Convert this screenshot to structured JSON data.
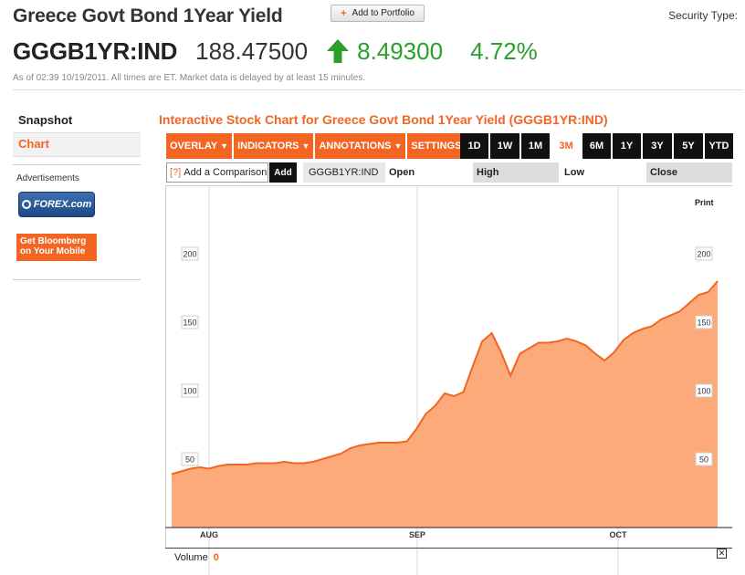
{
  "header": {
    "title": "Greece Govt Bond 1Year Yield",
    "add_portfolio": "Add to Portfolio",
    "security_type": "Security Type:"
  },
  "quote": {
    "ticker": "GGGB1YR:IND",
    "price": "188.47500",
    "change": "8.49300",
    "change_pct": "4.72%",
    "direction": "up",
    "up_color": "#2aa02a"
  },
  "asof": "As of 02:39 10/19/2011. All times are ET. Market data is delayed by at least 15 minutes.",
  "sidebar": {
    "items": [
      {
        "label": "Snapshot"
      },
      {
        "label": "Chart"
      }
    ],
    "ads_label": "Advertisements",
    "forex_ad": "FOREX.com",
    "bloomberg_ad_line1": "Get Bloomberg",
    "bloomberg_ad_line2": "on Your Mobile"
  },
  "chart_panel": {
    "title": "Interactive Stock Chart for Greece Govt Bond 1Year Yield (GGGB1YR:IND)",
    "menus": [
      "OVERLAY",
      "INDICATORS",
      "ANNOTATIONS",
      "SETTINGS"
    ],
    "ranges": [
      "1D",
      "1W",
      "1M",
      "3M",
      "6M",
      "1Y",
      "3Y",
      "5Y",
      "YTD"
    ],
    "selected_range": "3M",
    "compare": {
      "qmark": "[?]",
      "label": "Add a Comparison",
      "add_button": "Add",
      "ticker": "GGGB1YR:IND",
      "cols": [
        "Open",
        "High",
        "Low",
        "Close"
      ]
    },
    "print": "Print",
    "volume_label": "Volume",
    "volume_value": "0",
    "accent": "#f26522",
    "area_fill": "#fdaa7a"
  },
  "chart_data": {
    "type": "area",
    "title": "",
    "xlabel": "",
    "ylabel": "",
    "x_ticks": [
      "AUG",
      "SEP",
      "OCT"
    ],
    "y_ticks": [
      50,
      100,
      150,
      200
    ],
    "ylim": [
      0,
      225
    ],
    "grid": "vertical",
    "series": [
      {
        "values": [
          39,
          41,
          43,
          44,
          43,
          45,
          46,
          46,
          46,
          47,
          47,
          47,
          48,
          47,
          47,
          48,
          50,
          52,
          54,
          58,
          60,
          61,
          62,
          62,
          62,
          63,
          72,
          83,
          89,
          98,
          96,
          99,
          118,
          136,
          142,
          128,
          111,
          127,
          131,
          135,
          135,
          136,
          138,
          136,
          133,
          127,
          122,
          128,
          137,
          142,
          145,
          147,
          152,
          155,
          158,
          164,
          170,
          172,
          180
        ]
      }
    ]
  }
}
